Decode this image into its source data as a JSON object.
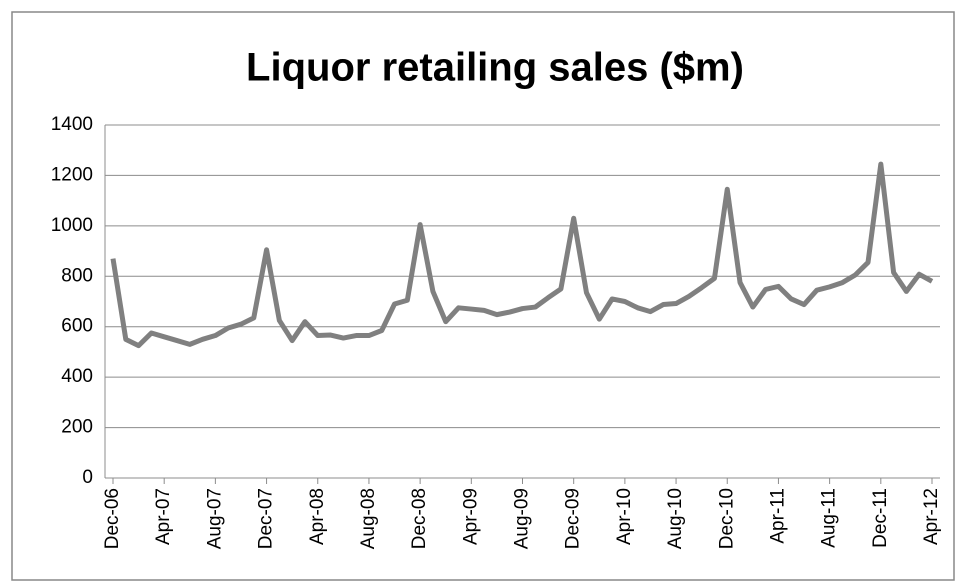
{
  "chart_data": {
    "type": "line",
    "title": "Liquor retailing sales ($m)",
    "categories": [
      "Dec-06",
      null,
      null,
      null,
      "Apr-07",
      null,
      null,
      null,
      "Aug-07",
      null,
      null,
      null,
      "Dec-07",
      null,
      null,
      null,
      "Apr-08",
      null,
      null,
      null,
      "Aug-08",
      null,
      null,
      null,
      "Dec-08",
      null,
      null,
      null,
      "Apr-09",
      null,
      null,
      null,
      "Aug-09",
      null,
      null,
      null,
      "Dec-09",
      null,
      null,
      null,
      "Apr-10",
      null,
      null,
      null,
      "Aug-10",
      null,
      null,
      null,
      "Dec-10",
      null,
      null,
      null,
      "Apr-11",
      null,
      null,
      null,
      "Aug-11",
      null,
      null,
      null,
      "Dec-11",
      null,
      null,
      null,
      "Apr-12"
    ],
    "values": [
      870,
      550,
      525,
      575,
      560,
      545,
      530,
      550,
      565,
      595,
      610,
      635,
      905,
      625,
      545,
      620,
      565,
      567,
      555,
      565,
      565,
      585,
      690,
      705,
      1005,
      740,
      620,
      675,
      670,
      665,
      648,
      658,
      672,
      678,
      715,
      750,
      1030,
      735,
      630,
      710,
      700,
      675,
      660,
      688,
      692,
      720,
      755,
      792,
      1145,
      775,
      678,
      748,
      760,
      710,
      688,
      745,
      758,
      775,
      805,
      855,
      1245,
      815,
      740,
      808,
      780
    ],
    "color": "#808080",
    "ylim": [
      0,
      1400
    ],
    "yticks": [
      0,
      200,
      400,
      600,
      800,
      1000,
      1200,
      1400
    ],
    "grid": true
  }
}
